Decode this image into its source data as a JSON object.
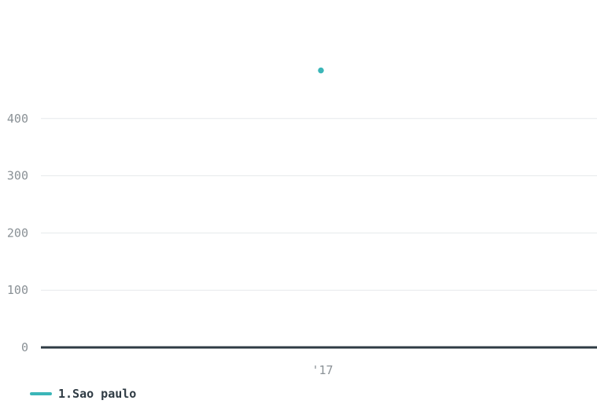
{
  "chart_data": {
    "type": "line",
    "title": "",
    "xlabel": "",
    "ylabel": "",
    "categories": [
      "'17"
    ],
    "ylim": [
      0,
      500
    ],
    "yticks": [
      0,
      100,
      200,
      300,
      400
    ],
    "grid": true,
    "legend_position": "bottom-left",
    "series": [
      {
        "name": "1.Sao paulo",
        "color": "#3bb6b8",
        "values": [
          484
        ]
      }
    ]
  }
}
